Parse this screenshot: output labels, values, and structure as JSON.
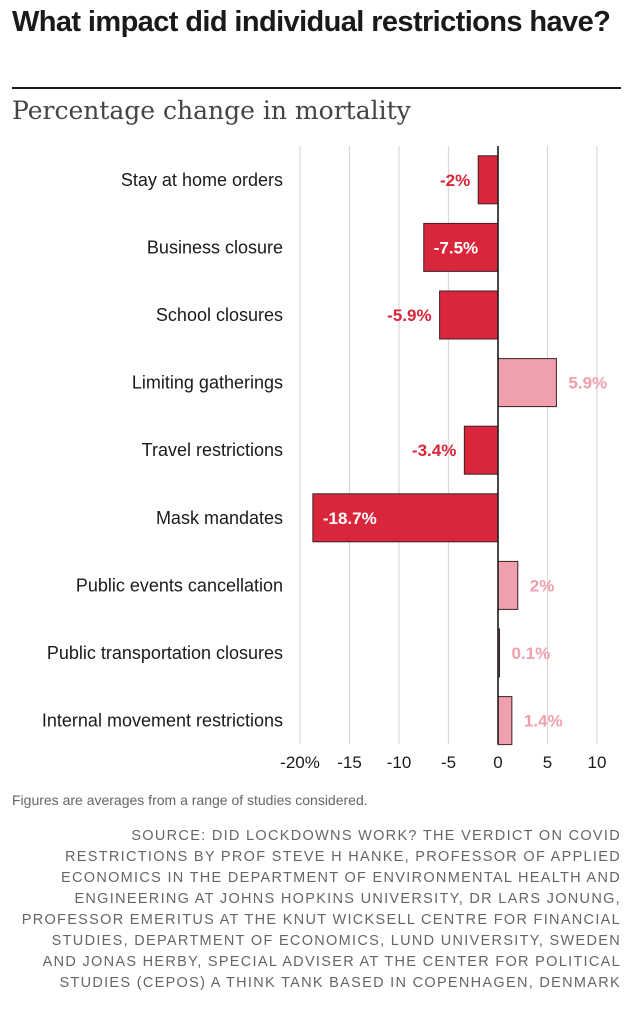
{
  "title": "What impact did individual restrictions have?",
  "subtitle": "Percentage change in mortality",
  "note": "Figures are averages from a range of studies considered.",
  "source": "SOURCE: DID LOCKDOWNS WORK? THE VERDICT ON COVID RESTRICTIONS BY PROF STEVE H HANKE, PROFESSOR OF APPLIED ECONOMICS IN THE DEPARTMENT OF ENVIRONMENTAL HEALTH AND ENGINEERING AT JOHNS HOPKINS UNIVERSITY, DR LARS JONUNG, PROFESSOR EMERITUS AT THE KNUT WICKSELL CENTRE FOR FINANCIAL STUDIES, DEPARTMENT OF ECONOMICS, LUND UNIVERSITY, SWEDEN AND JONAS HERBY, SPECIAL ADVISER AT THE CENTER FOR POLITICAL STUDIES (CEPOS) A THINK TANK BASED IN COPENHAGEN, DENMARK",
  "colors": {
    "negative": "#d9263a",
    "positive": "#f0a0ac",
    "bar_outline": "#3a2226",
    "grid": "#d9d9d9",
    "axis": "#1a1a1a"
  },
  "chart_data": {
    "type": "bar",
    "orientation": "horizontal",
    "categories": [
      "Stay at home orders",
      "Business closure",
      "School closures",
      "Limiting gatherings",
      "Travel restrictions",
      "Mask mandates",
      "Public events cancellation",
      "Public transportation closures",
      "Internal movement restrictions"
    ],
    "values": [
      -2,
      -7.5,
      -5.9,
      5.9,
      -3.4,
      -18.7,
      2,
      0.1,
      1.4
    ],
    "value_labels": [
      "-2%",
      "-7.5%",
      "-5.9%",
      "5.9%",
      "-3.4%",
      "-18.7%",
      "2%",
      "0.1%",
      "1.4%"
    ],
    "xlim": [
      -20,
      10
    ],
    "xticks": [
      -20,
      -15,
      -10,
      -5,
      0,
      5,
      10
    ],
    "xtick_labels": [
      "-20%",
      "-15",
      "-10",
      "-5",
      "0",
      "5",
      "10"
    ],
    "grid": true
  }
}
